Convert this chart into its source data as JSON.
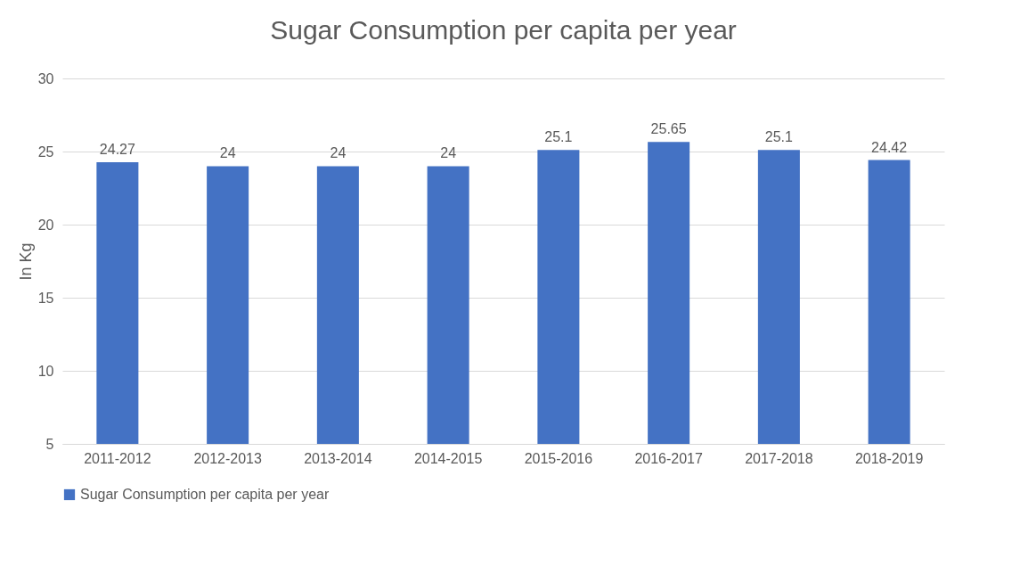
{
  "chart_data": {
    "type": "bar",
    "title": "Sugar Consumption per capita per year",
    "ylabel": "In Kg",
    "categories": [
      "2011-2012",
      "2012-2013",
      "2013-2014",
      "2014-2015",
      "2015-2016",
      "2016-2017",
      "2017-2018",
      "2018-2019"
    ],
    "series": [
      {
        "name": "Sugar Consumption per capita per year",
        "color": "#4472c4",
        "values": [
          24.27,
          24,
          24,
          24,
          25.1,
          25.65,
          25.1,
          24.42
        ]
      }
    ],
    "ylim": [
      5,
      30
    ],
    "yticks": [
      5,
      10,
      15,
      20,
      25,
      30
    ],
    "grid": "y",
    "legend": "bottom",
    "data_labels": true
  }
}
